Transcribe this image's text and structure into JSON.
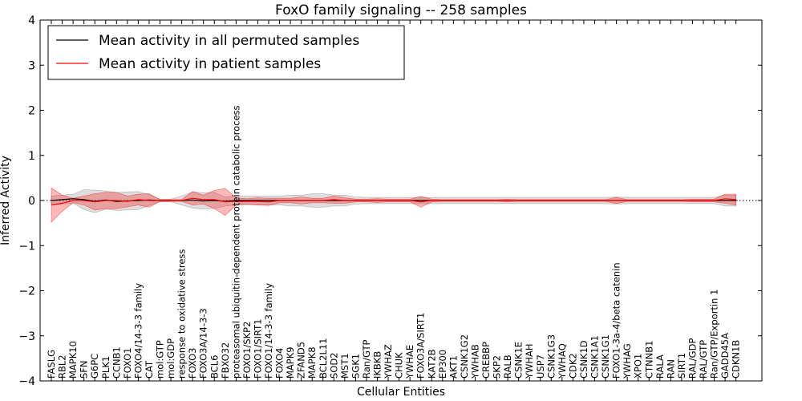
{
  "chart_data": {
    "type": "line",
    "title": "FoxO family signaling -- 258 samples",
    "xlabel": "Cellular Entities",
    "ylabel": "Inferred Activity",
    "ylim": [
      -4,
      4
    ],
    "yticks": [
      4,
      3,
      2,
      1,
      0,
      -1,
      -2,
      -3,
      -4
    ],
    "ytick_labels": [
      "4",
      "3",
      "2",
      "1",
      "0",
      "−1",
      "−2",
      "−3",
      "−4"
    ],
    "legend": {
      "placement": "top-left",
      "entries": [
        {
          "label": "Mean activity in all permuted samples",
          "color": "#000000"
        },
        {
          "label": "Mean activity in patient samples",
          "color": "#ff0000"
        }
      ]
    },
    "categories": [
      "FASLG",
      "RBL2",
      "MAPK10",
      "SFN",
      "G6PC",
      "PLK1",
      "CCNB1",
      "FOXO1",
      "FOXO4/14-3-3 family",
      "CAT",
      "mol:GTP",
      "mol:GDP",
      "response to oxidative stress",
      "FOXO3",
      "FOXO3A/14-3-3",
      "BCL6",
      "FBXO32",
      "proteasomal ubiquitin-dependent protein catabolic process",
      "FOXO1/SKP2",
      "FOXO1/SIRT1",
      "FOXO1/14-3-3 family",
      "FOXO4",
      "MAPK9",
      "ZFAND5",
      "MAPK8",
      "BCL2L11",
      "SOD2",
      "MST1",
      "SGK1",
      "Ran/GTP",
      "IKBKB",
      "YWHAZ",
      "CHUK",
      "YWHAE",
      "FOXO3A/SIRT1",
      "KAT2B",
      "EP300",
      "AKT1",
      "CSNK1G2",
      "YWHAB",
      "CREBBP",
      "SKP2",
      "RALB",
      "CSNK1E",
      "YWHAH",
      "USP7",
      "CSNK1G3",
      "YWHAQ",
      "CDK2",
      "CSNK1D",
      "CSNK1A1",
      "CSNK1G1",
      "FOXO1-3a-4/beta catenin",
      "YWHAG",
      "XPO1",
      "CTNNB1",
      "RALA",
      "RAN",
      "SIRT1",
      "RAL/GDP",
      "RAL/GTP",
      "Ran/GTP/Exportin 1",
      "GADD45A",
      "CDKN1B"
    ],
    "series": [
      {
        "name": "Mean activity in all permuted samples",
        "color": "#000000",
        "values": [
          0.0,
          0.02,
          0.04,
          0.02,
          -0.02,
          0.01,
          -0.02,
          -0.01,
          0.0,
          0.01,
          0.0,
          0.0,
          0.0,
          0.01,
          -0.01,
          0.0,
          -0.02,
          0.0,
          0.0,
          0.0,
          0.0,
          0.0,
          0.0,
          0.0,
          0.0,
          0.0,
          0.0,
          0.0,
          0.0,
          0.0,
          0.0,
          0.0,
          0.0,
          0.0,
          0.0,
          0.0,
          0.0,
          0.0,
          0.0,
          0.0,
          0.0,
          0.0,
          0.0,
          0.0,
          0.0,
          0.0,
          0.0,
          0.0,
          0.0,
          0.0,
          0.0,
          0.0,
          0.0,
          0.0,
          0.0,
          0.0,
          0.0,
          0.0,
          0.0,
          0.0,
          0.0,
          0.0,
          0.0,
          0.0
        ],
        "spread": [
          0.1,
          0.1,
          0.1,
          0.22,
          0.25,
          0.2,
          0.2,
          0.2,
          0.2,
          0.12,
          0.03,
          0.03,
          0.1,
          0.18,
          0.18,
          0.18,
          0.1,
          0.1,
          0.1,
          0.1,
          0.1,
          0.1,
          0.12,
          0.12,
          0.15,
          0.15,
          0.12,
          0.12,
          0.08,
          0.07,
          0.07,
          0.07,
          0.07,
          0.07,
          0.07,
          0.07,
          0.07,
          0.07,
          0.07,
          0.07,
          0.07,
          0.07,
          0.07,
          0.07,
          0.07,
          0.07,
          0.07,
          0.07,
          0.07,
          0.07,
          0.07,
          0.07,
          0.08,
          0.07,
          0.07,
          0.07,
          0.07,
          0.07,
          0.07,
          0.07,
          0.07,
          0.07,
          0.12,
          0.12
        ]
      },
      {
        "name": "Mean activity in patient samples",
        "color": "#ff0000",
        "values": [
          -0.1,
          -0.06,
          0.0,
          0.0,
          -0.03,
          0.0,
          0.0,
          -0.02,
          0.02,
          0.0,
          0.0,
          0.0,
          0.0,
          0.05,
          0.02,
          0.02,
          -0.03,
          -0.02,
          -0.02,
          -0.02,
          -0.03,
          0.0,
          0.0,
          0.0,
          0.0,
          0.0,
          0.02,
          0.0,
          0.0,
          0.0,
          0.0,
          0.0,
          0.0,
          0.0,
          -0.03,
          0.0,
          0.0,
          0.0,
          0.0,
          0.0,
          0.0,
          0.0,
          0.0,
          0.0,
          0.0,
          0.0,
          0.0,
          0.0,
          0.0,
          0.0,
          0.0,
          0.0,
          0.0,
          0.0,
          0.0,
          0.0,
          0.0,
          0.0,
          0.0,
          0.0,
          0.0,
          0.0,
          0.04,
          0.02
        ],
        "spread": [
          0.38,
          0.18,
          0.05,
          0.1,
          0.18,
          0.18,
          0.18,
          0.12,
          0.12,
          0.15,
          0.02,
          0.02,
          0.02,
          0.15,
          0.1,
          0.2,
          0.3,
          0.08,
          0.06,
          0.08,
          0.08,
          0.05,
          0.05,
          0.08,
          0.05,
          0.05,
          0.08,
          0.06,
          0.03,
          0.03,
          0.04,
          0.03,
          0.03,
          0.03,
          0.12,
          0.03,
          0.02,
          0.02,
          0.02,
          0.02,
          0.02,
          0.02,
          0.03,
          0.02,
          0.02,
          0.02,
          0.02,
          0.02,
          0.02,
          0.02,
          0.02,
          0.02,
          0.07,
          0.02,
          0.02,
          0.02,
          0.02,
          0.02,
          0.02,
          0.03,
          0.03,
          0.03,
          0.1,
          0.12
        ]
      }
    ]
  }
}
